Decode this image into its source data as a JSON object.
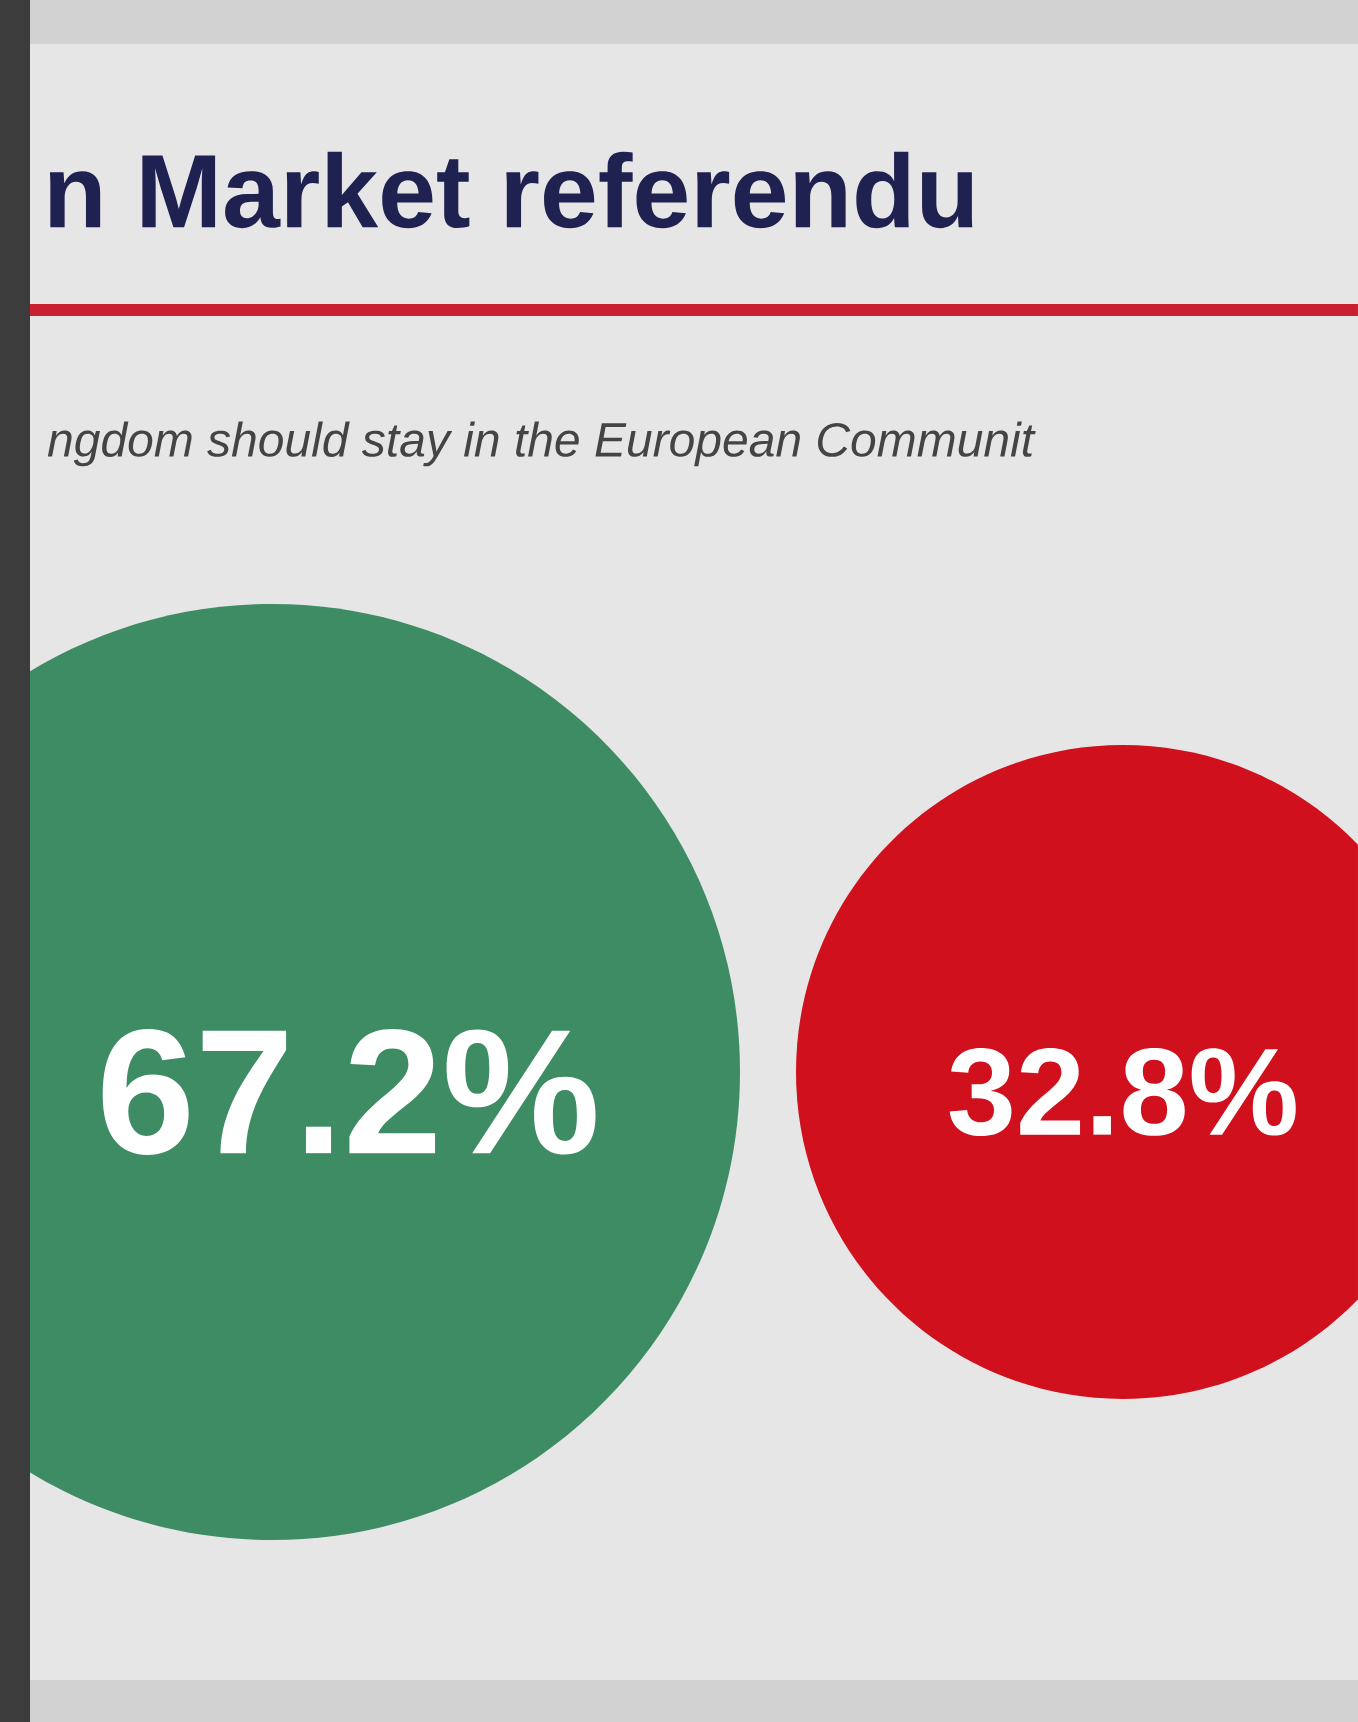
{
  "chart_data": {
    "type": "other",
    "title": "n Market referendu",
    "subtitle": "ngdom should stay in the European Communit",
    "values": [
      67.2,
      32.8
    ],
    "colors": [
      "#3d8c63",
      "#d0101c"
    ],
    "value_labels": [
      "67.2%",
      "32.8%"
    ]
  }
}
